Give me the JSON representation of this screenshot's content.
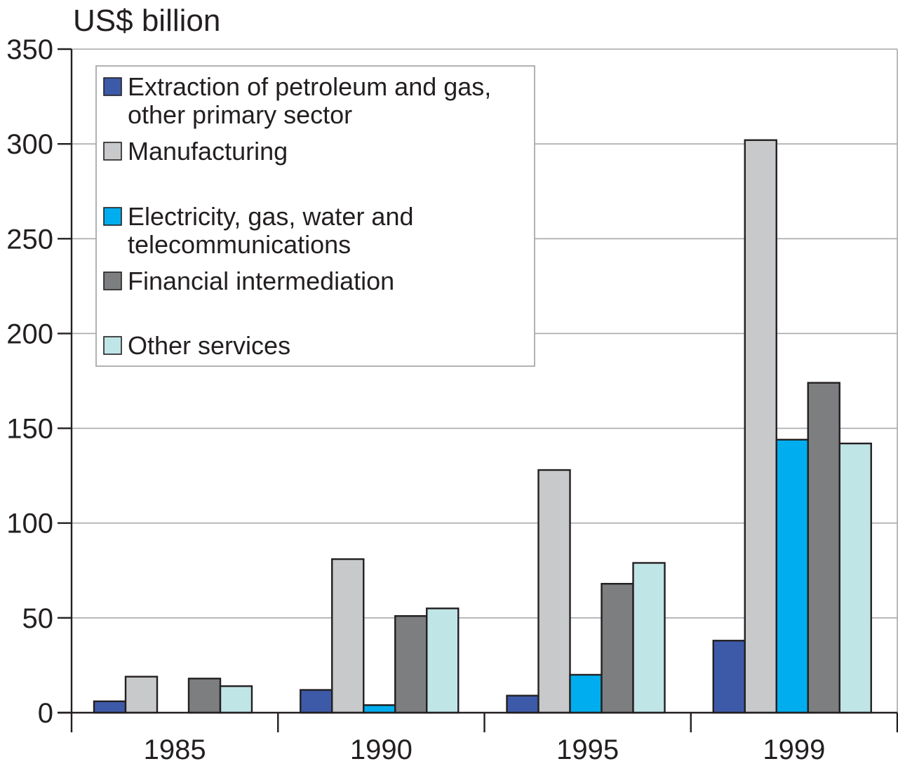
{
  "chart_data": {
    "type": "bar",
    "ylabel": "US$ billion",
    "xlabel": "",
    "title": "",
    "ylim": [
      0,
      350
    ],
    "yticks": [
      0,
      50,
      100,
      150,
      200,
      250,
      300,
      350
    ],
    "grid": true,
    "legend_position": "top-left",
    "categories": [
      "1985",
      "1990",
      "1995",
      "1999"
    ],
    "series": [
      {
        "name": "Extraction of petroleum and gas, other primary sector",
        "name_lines": [
          "Extraction of petroleum and gas,",
          "other primary sector"
        ],
        "color": "#3d5aa9",
        "values": [
          6,
          12,
          9,
          38
        ]
      },
      {
        "name": "Manufacturing",
        "name_lines": [
          "Manufacturing"
        ],
        "color": "#c8c9cb",
        "values": [
          19,
          81,
          128,
          302
        ]
      },
      {
        "name": "Electricity, gas, water and telecommunications",
        "name_lines": [
          "Electricity, gas, water and",
          "telecommunications"
        ],
        "color": "#00aeef",
        "values": [
          0,
          4,
          20,
          144
        ]
      },
      {
        "name": "Financial intermediation",
        "name_lines": [
          "Financial intermediation"
        ],
        "color": "#7d7e80",
        "values": [
          18,
          51,
          68,
          174
        ]
      },
      {
        "name": "Other services",
        "name_lines": [
          "Other services"
        ],
        "color": "#c0e5e6",
        "values": [
          14,
          55,
          79,
          142
        ]
      }
    ]
  }
}
